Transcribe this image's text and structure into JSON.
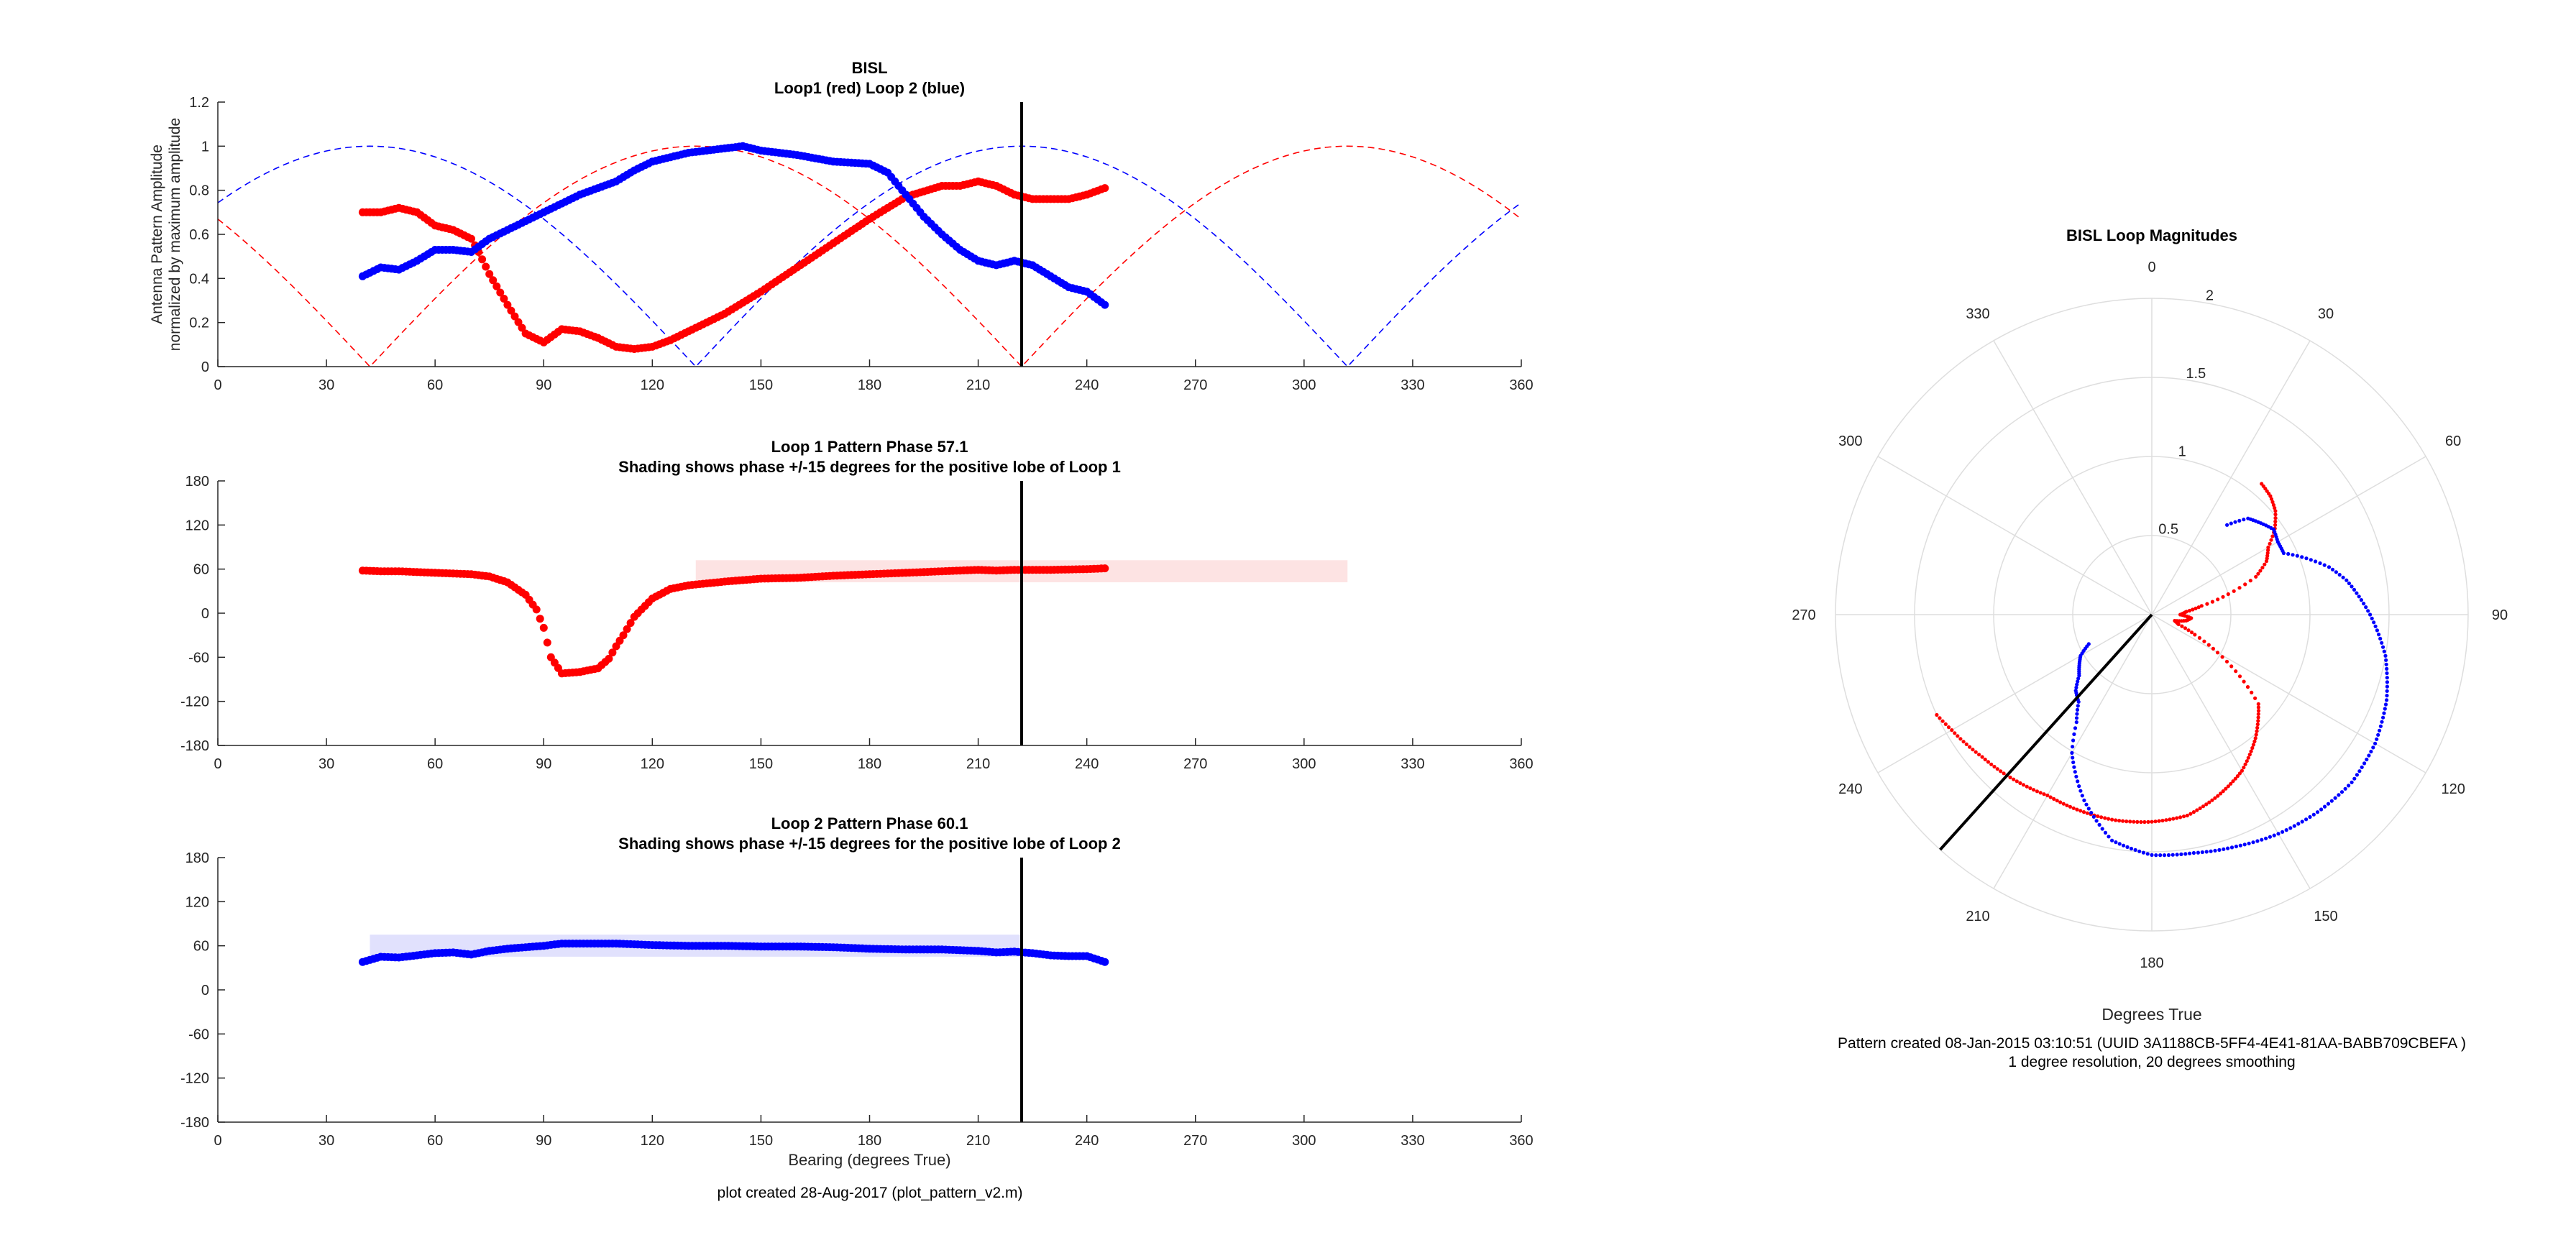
{
  "figure": {
    "footer_left": "plot created 28-Aug-2017 (plot_pattern_v2.m)",
    "footer_right_line1": "Pattern created 08-Jan-2015 03:10:51 (UUID 3A1188CB-5FF4-4E41-81AA-BABB709CBEFA )",
    "footer_right_line2": "1 degree resolution, 20 degrees smoothing",
    "colors": {
      "loop1": "#ff0000",
      "loop2": "#0000ff",
      "loop1_shade": "#fde3e3",
      "loop2_shade": "#e1e1fd",
      "axis": "#262626",
      "grid": "#dedede"
    }
  },
  "chart_data": [
    {
      "type": "line",
      "title": "BISL",
      "subtitle": "Loop1 (red) Loop 2 (blue)",
      "xlabel": "",
      "ylabel": "Antenna Pattern Amplitude",
      "ylabel2": "normalized by maximum amplitude",
      "xlim": [
        0,
        360
      ],
      "ylim": [
        0,
        1.2
      ],
      "xticks": [
        0,
        30,
        60,
        90,
        120,
        150,
        180,
        210,
        240,
        270,
        300,
        330,
        360
      ],
      "yticks": [
        0,
        0.2,
        0.4,
        0.6,
        0.8,
        1,
        1.2
      ],
      "ytick_labels": [
        "0",
        "0.2",
        "0.4",
        "0.6",
        "0.8",
        "1",
        "1.2"
      ],
      "bearing_line": 222,
      "ideal_patterns": [
        {
          "color": "#ff0000",
          "phase_offset": 42,
          "style": "dashed"
        },
        {
          "color": "#0000ff",
          "phase_offset": 132,
          "style": "dashed"
        }
      ],
      "series": [
        {
          "color": "#ff0000",
          "x": [
            40,
            45,
            50,
            55,
            60,
            65,
            70,
            72,
            75,
            80,
            85,
            90,
            95,
            100,
            105,
            110,
            115,
            120,
            125,
            130,
            140,
            150,
            160,
            170,
            180,
            190,
            200,
            205,
            210,
            215,
            220,
            225,
            230,
            235,
            240,
            245
          ],
          "y": [
            0.7,
            0.7,
            0.72,
            0.7,
            0.64,
            0.62,
            0.58,
            0.52,
            0.42,
            0.28,
            0.15,
            0.11,
            0.17,
            0.16,
            0.13,
            0.09,
            0.08,
            0.09,
            0.12,
            0.16,
            0.24,
            0.34,
            0.45,
            0.56,
            0.67,
            0.77,
            0.82,
            0.82,
            0.84,
            0.82,
            0.78,
            0.76,
            0.76,
            0.76,
            0.78,
            0.81
          ]
        },
        {
          "color": "#0000ff",
          "x": [
            40,
            45,
            50,
            55,
            60,
            65,
            70,
            75,
            80,
            90,
            100,
            110,
            115,
            120,
            130,
            140,
            145,
            150,
            160,
            170,
            180,
            185,
            190,
            195,
            200,
            205,
            210,
            215,
            220,
            225,
            230,
            235,
            240,
            245
          ],
          "y": [
            0.41,
            0.45,
            0.44,
            0.48,
            0.53,
            0.53,
            0.52,
            0.58,
            0.62,
            0.7,
            0.78,
            0.84,
            0.89,
            0.93,
            0.97,
            0.99,
            1.0,
            0.98,
            0.96,
            0.93,
            0.92,
            0.88,
            0.78,
            0.68,
            0.6,
            0.53,
            0.48,
            0.46,
            0.48,
            0.46,
            0.41,
            0.36,
            0.34,
            0.28
          ]
        }
      ]
    },
    {
      "type": "line",
      "title": "Loop 1 Pattern Phase 57.1",
      "subtitle": "Shading shows phase +/-15 degrees for the positive lobe of Loop 1",
      "xlim": [
        0,
        360
      ],
      "ylim": [
        -180,
        180
      ],
      "xticks": [
        0,
        30,
        60,
        90,
        120,
        150,
        180,
        210,
        240,
        270,
        300,
        330,
        360
      ],
      "yticks": [
        -180,
        -120,
        -60,
        0,
        60,
        120,
        180
      ],
      "bearing_line": 222,
      "shading": {
        "x": [
          132,
          312
        ],
        "y": [
          42.1,
          72.1
        ],
        "color": "#fde3e3"
      },
      "series": [
        {
          "color": "#ff0000",
          "x": [
            40,
            45,
            50,
            55,
            60,
            65,
            70,
            75,
            80,
            85,
            88,
            90,
            92,
            95,
            100,
            105,
            108,
            110,
            112,
            115,
            120,
            125,
            130,
            140,
            150,
            160,
            170,
            180,
            190,
            200,
            210,
            215,
            220,
            230,
            240,
            245
          ],
          "y": [
            58,
            57,
            57,
            56,
            55,
            54,
            53,
            50,
            42,
            25,
            5,
            -20,
            -60,
            -82,
            -80,
            -75,
            -62,
            -45,
            -30,
            -5,
            20,
            33,
            38,
            43,
            47,
            48,
            51,
            53,
            55,
            57,
            59,
            58,
            59,
            59,
            60,
            61
          ]
        }
      ]
    },
    {
      "type": "line",
      "title": "Loop 2 Pattern Phase 60.1",
      "subtitle": "Shading shows phase +/-15 degrees for the positive lobe of Loop 2",
      "xlabel": "Bearing (degrees True)",
      "xlim": [
        0,
        360
      ],
      "ylim": [
        -180,
        180
      ],
      "xticks": [
        0,
        30,
        60,
        90,
        120,
        150,
        180,
        210,
        240,
        270,
        300,
        330,
        360
      ],
      "yticks": [
        -180,
        -120,
        -60,
        0,
        60,
        120,
        180
      ],
      "bearing_line": 222,
      "shading": {
        "x": [
          42,
          222
        ],
        "y": [
          45.1,
          75.1
        ],
        "color": "#e1e1fd"
      },
      "series": [
        {
          "color": "#0000ff",
          "x": [
            40,
            45,
            50,
            55,
            60,
            65,
            70,
            75,
            80,
            90,
            95,
            100,
            110,
            120,
            130,
            140,
            150,
            160,
            170,
            180,
            190,
            200,
            210,
            215,
            220,
            225,
            230,
            235,
            240,
            245
          ],
          "y": [
            38,
            45,
            44,
            47,
            50,
            51,
            48,
            53,
            56,
            60,
            63,
            63,
            63,
            61,
            60,
            60,
            59,
            59,
            58,
            56,
            55,
            55,
            53,
            51,
            52,
            50,
            47,
            46,
            46,
            38
          ]
        }
      ]
    },
    {
      "type": "polar",
      "title": "BISL Loop Magnitudes",
      "xlabel": "Degrees True",
      "rlim": [
        0,
        2
      ],
      "rticks": [
        0.5,
        1,
        1.5,
        2
      ],
      "rtick_labels": [
        "0.5",
        "1",
        "1.5",
        "2"
      ],
      "theta_ticks": [
        0,
        30,
        60,
        90,
        120,
        150,
        180,
        210,
        240,
        270,
        300,
        330
      ],
      "bearing_line": {
        "theta": 222,
        "r": 2.0
      },
      "series": [
        {
          "color": "#ff0000",
          "theta": [
            40,
            45,
            50,
            55,
            60,
            65,
            70,
            75,
            80,
            85,
            90,
            95,
            100,
            105,
            110,
            115,
            120,
            125,
            130,
            140,
            150,
            160,
            170,
            180,
            190,
            200,
            210,
            215,
            220,
            225,
            230,
            235,
            240,
            245
          ],
          "r": [
            1.08,
            1.06,
            1.02,
            0.95,
            0.85,
            0.8,
            0.7,
            0.5,
            0.32,
            0.22,
            0.18,
            0.25,
            0.22,
            0.15,
            0.18,
            0.3,
            0.48,
            0.68,
            0.88,
            1.02,
            1.14,
            1.22,
            1.29,
            1.31,
            1.32,
            1.32,
            1.32,
            1.34,
            1.36,
            1.38,
            1.4,
            1.43,
            1.46,
            1.5
          ]
        },
        {
          "color": "#0000ff",
          "theta": [
            40,
            45,
            50,
            55,
            60,
            65,
            70,
            75,
            80,
            90,
            100,
            110,
            120,
            130,
            140,
            150,
            160,
            170,
            180,
            190,
            200,
            210,
            215,
            220,
            225,
            230,
            235,
            240,
            245
          ],
          "r": [
            0.74,
            0.86,
            0.9,
            0.94,
            0.92,
            0.92,
            1.04,
            1.16,
            1.25,
            1.38,
            1.5,
            1.58,
            1.63,
            1.65,
            1.63,
            1.6,
            1.56,
            1.53,
            1.52,
            1.45,
            1.25,
            1.01,
            0.83,
            0.72,
            0.68,
            0.6,
            0.56,
            0.52,
            0.44
          ]
        }
      ]
    }
  ]
}
